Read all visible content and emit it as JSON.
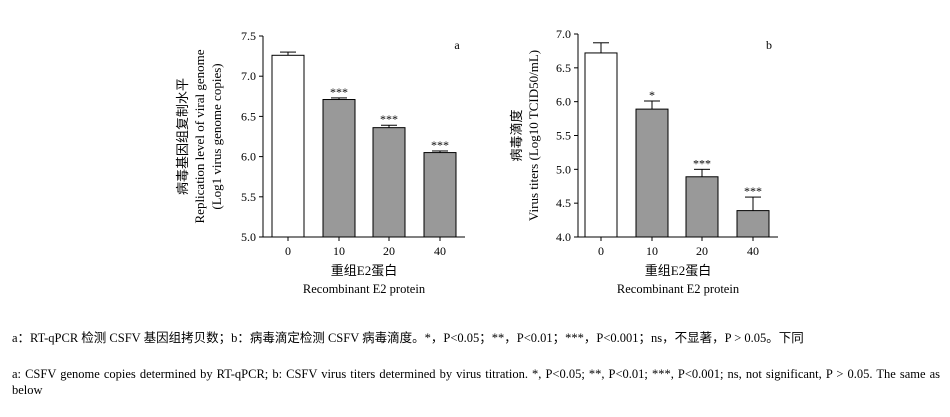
{
  "chart_data": [
    {
      "type": "bar",
      "panel_label": "a",
      "categories": [
        "0",
        "10",
        "20",
        "40"
      ],
      "values": [
        7.26,
        6.71,
        6.36,
        6.05
      ],
      "errors": [
        0.04,
        0.02,
        0.03,
        0.02
      ],
      "significance": [
        "",
        "***",
        "***",
        "***"
      ],
      "bar_colors": [
        "#ffffff",
        "#999999",
        "#999999",
        "#999999"
      ],
      "ylim": [
        5.0,
        7.5
      ],
      "yticks": [
        "5.0",
        "5.5",
        "6.0",
        "6.5",
        "7.0",
        "7.5"
      ],
      "ylabel_lines": [
        "病毒基因组复制水平",
        "Replication level of viral genome",
        "(Log1 virus genome copies)"
      ],
      "xlabel_zh": "重组E2蛋白",
      "xlabel_en": "Recombinant E2 protein"
    },
    {
      "type": "bar",
      "panel_label": "b",
      "categories": [
        "0",
        "10",
        "20",
        "40"
      ],
      "values": [
        6.72,
        5.89,
        4.89,
        4.39
      ],
      "errors": [
        0.15,
        0.12,
        0.11,
        0.2
      ],
      "significance": [
        "",
        "*",
        "***",
        "***"
      ],
      "bar_colors": [
        "#ffffff",
        "#999999",
        "#999999",
        "#999999"
      ],
      "ylim": [
        4.0,
        7.0
      ],
      "yticks": [
        "4.0",
        "4.5",
        "5.0",
        "5.5",
        "6.0",
        "6.5",
        "7.0"
      ],
      "ylabel_lines": [
        "病毒滴度",
        "Virus titers (Log10 TCID50/mL)"
      ],
      "xlabel_zh": "重组E2蛋白",
      "xlabel_en": "Recombinant E2 protein"
    }
  ],
  "caption": {
    "zh": "a：RT-qPCR 检测 CSFV 基因组拷贝数；b：病毒滴定检测 CSFV 病毒滴度。*，P<0.05；**，P<0.01；***，P<0.001；ns，不显著，P > 0.05。下同",
    "en": "a: CSFV genome copies determined by RT-qPCR; b: CSFV virus titers determined by virus titration. *, P<0.05; **, P<0.01; ***, P<0.001; ns, not significant, P > 0.05. The same as below"
  }
}
